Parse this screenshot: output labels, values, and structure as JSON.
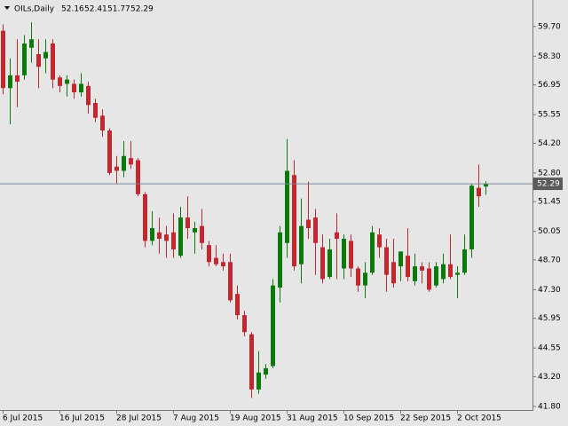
{
  "chart_data": {
    "type": "candlestick",
    "symbol": "OILs,Daily",
    "header_values": [
      52.16,
      52.41,
      51.77,
      52.29
    ],
    "current_price": 52.29,
    "categories": [
      "6 Jul 2015",
      null,
      null,
      null,
      null,
      null,
      null,
      null,
      "16 Jul 2015",
      null,
      null,
      null,
      null,
      null,
      null,
      null,
      "28 Jul 2015",
      null,
      null,
      null,
      null,
      null,
      null,
      null,
      "7 Aug 2015",
      null,
      null,
      null,
      null,
      null,
      null,
      null,
      "19 Aug 2015",
      null,
      null,
      null,
      null,
      null,
      null,
      null,
      "31 Aug 2015",
      null,
      null,
      null,
      null,
      null,
      null,
      null,
      "10 Sep 2015",
      null,
      null,
      null,
      null,
      null,
      null,
      null,
      "22 Sep 2015",
      null,
      null,
      null,
      null,
      null,
      null,
      null,
      "2 Oct 2015",
      null,
      null,
      null,
      null
    ],
    "open": [
      59.5,
      56.8,
      57.4,
      57.4,
      58.7,
      58.4,
      58.2,
      58.9,
      57.3,
      57.0,
      57.0,
      56.6,
      56.9,
      56.1,
      55.5,
      54.8,
      53.1,
      52.9,
      53.5,
      53.4,
      51.8,
      49.6,
      50.0,
      49.9,
      50.0,
      48.9,
      50.7,
      50.0,
      50.3,
      49.4,
      48.8,
      48.6,
      48.6,
      47.1,
      46.1,
      45.2,
      42.6,
      43.3,
      43.7,
      47.4,
      49.5,
      52.7,
      48.5,
      50.6,
      50.7,
      49.3,
      47.9,
      50.0,
      48.3,
      49.6,
      48.3,
      47.5,
      48.1,
      49.9,
      49.3,
      48.6,
      48.4,
      48.9,
      47.7,
      48.4,
      48.3,
      47.5,
      47.8,
      48.5,
      48.0,
      48.1,
      49.2,
      52.1,
      52.16
    ],
    "high": [
      59.8,
      58.2,
      59.1,
      59.3,
      59.9,
      59.1,
      59.1,
      59.1,
      57.4,
      57.4,
      57.2,
      57.5,
      57.1,
      56.3,
      55.8,
      54.9,
      53.6,
      54.3,
      54.3,
      53.5,
      51.9,
      51.0,
      50.7,
      50.3,
      50.9,
      51.2,
      51.7,
      50.5,
      51.1,
      49.6,
      49.4,
      49.0,
      49.0,
      47.5,
      46.3,
      45.3,
      44.4,
      43.8,
      47.8,
      50.3,
      54.4,
      53.4,
      51.6,
      52.4,
      51.1,
      49.9,
      49.7,
      50.9,
      49.9,
      49.9,
      48.4,
      48.6,
      50.3,
      50.2,
      49.7,
      49.7,
      49.1,
      50.2,
      49.0,
      48.6,
      48.6,
      48.6,
      49.0,
      49.9,
      48.4,
      49.9,
      52.3,
      53.2,
      52.41
    ],
    "low": [
      56.5,
      55.1,
      55.9,
      57.2,
      58.0,
      56.8,
      57.5,
      56.8,
      56.6,
      56.4,
      56.3,
      56.4,
      55.6,
      55.2,
      54.5,
      52.7,
      52.3,
      52.6,
      53.0,
      51.7,
      49.3,
      49.4,
      49.0,
      48.8,
      48.8,
      48.8,
      49.7,
      49.0,
      49.2,
      48.4,
      48.4,
      48.2,
      46.7,
      45.9,
      45.1,
      42.2,
      42.4,
      43.1,
      43.6,
      46.7,
      48.8,
      48.2,
      47.6,
      49.7,
      48.0,
      47.6,
      47.8,
      47.8,
      47.8,
      47.9,
      47.2,
      46.9,
      48.0,
      48.8,
      47.2,
      47.4,
      47.7,
      47.7,
      47.5,
      47.6,
      47.2,
      47.4,
      47.6,
      47.8,
      46.9,
      48.0,
      48.8,
      51.2,
      51.77
    ],
    "close": [
      56.8,
      57.4,
      57.1,
      58.9,
      59.1,
      57.8,
      58.5,
      57.2,
      56.9,
      57.2,
      56.6,
      57.0,
      56.0,
      55.4,
      54.8,
      52.8,
      52.9,
      53.6,
      53.2,
      51.8,
      49.6,
      50.2,
      49.7,
      49.6,
      49.2,
      50.7,
      50.2,
      50.2,
      49.5,
      48.6,
      48.5,
      48.4,
      46.8,
      46.1,
      45.3,
      42.6,
      43.4,
      43.6,
      47.5,
      50.0,
      52.9,
      48.4,
      50.3,
      50.2,
      49.5,
      47.8,
      49.2,
      49.7,
      49.7,
      48.3,
      47.5,
      48.1,
      50.0,
      49.3,
      48.0,
      47.6,
      49.1,
      47.9,
      48.4,
      48.2,
      47.3,
      48.4,
      48.5,
      47.9,
      48.1,
      49.2,
      52.2,
      51.7,
      52.29
    ],
    "up_color": "#0b7a0b",
    "down_color": "#c1272d",
    "ylim": [
      41.63,
      60.95
    ],
    "yticks": [
      {
        "value": 59.7,
        "label": "59.70"
      },
      {
        "value": 58.3,
        "label": "58.30"
      },
      56.95,
      55.55,
      {
        "value": 54.2,
        "label": "54.20"
      },
      {
        "value": 52.8,
        "label": "52.80"
      },
      51.45,
      50.05,
      {
        "value": 48.7,
        "label": "48.70"
      },
      {
        "value": 47.3,
        "label": "47.30"
      },
      45.95,
      44.55,
      {
        "value": 43.2,
        "label": "43.20"
      },
      {
        "value": 41.8,
        "label": "41.80"
      }
    ]
  }
}
